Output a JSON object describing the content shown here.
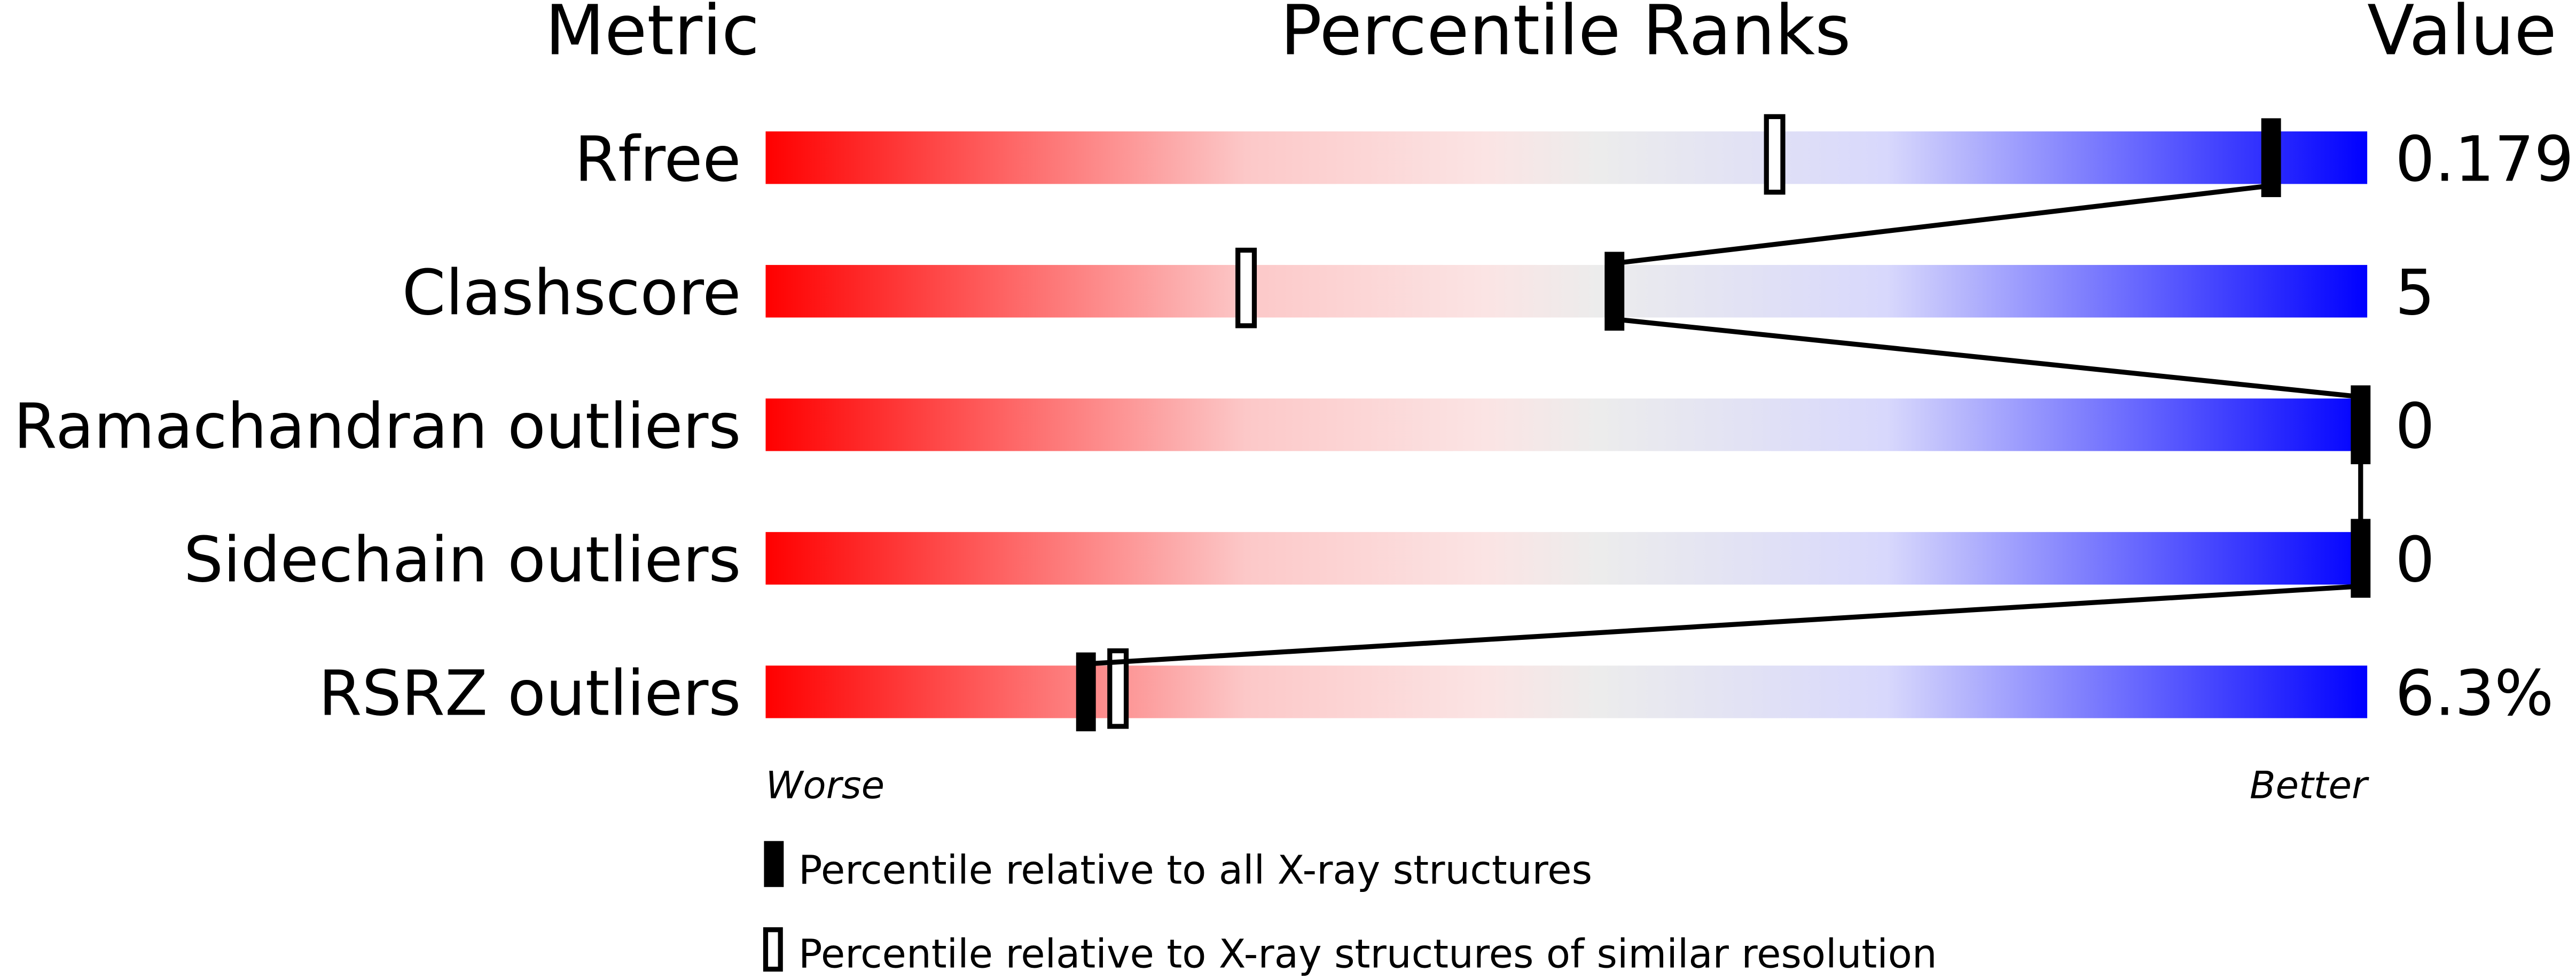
{
  "chart_data": {
    "type": "bar",
    "headers": {
      "metric": "Metric",
      "percentile": "Percentile Ranks",
      "value": "Value"
    },
    "xlim": [
      0,
      100
    ],
    "metrics": [
      {
        "name": "Rfree",
        "value": "0.179",
        "percentile_all": 94,
        "percentile_similar": 63
      },
      {
        "name": "Clashscore",
        "value": "5",
        "percentile_all": 53,
        "percentile_similar": 30
      },
      {
        "name": "Ramachandran outliers",
        "value": "0",
        "percentile_all": 100,
        "percentile_similar": null
      },
      {
        "name": "Sidechain outliers",
        "value": "0",
        "percentile_all": 100,
        "percentile_similar": null
      },
      {
        "name": "RSRZ outliers",
        "value": "6.3%",
        "percentile_all": 20,
        "percentile_similar": 22
      }
    ],
    "axis_labels": {
      "worse": "Worse",
      "better": "Better"
    },
    "legend": {
      "all": "Percentile relative to all X-ray structures",
      "similar": "Percentile relative to X-ray structures of similar resolution"
    },
    "colors": {
      "worse": "#ff0000",
      "middle": "#eeeeee",
      "better": "#0000ff",
      "marker": "#000000"
    }
  }
}
